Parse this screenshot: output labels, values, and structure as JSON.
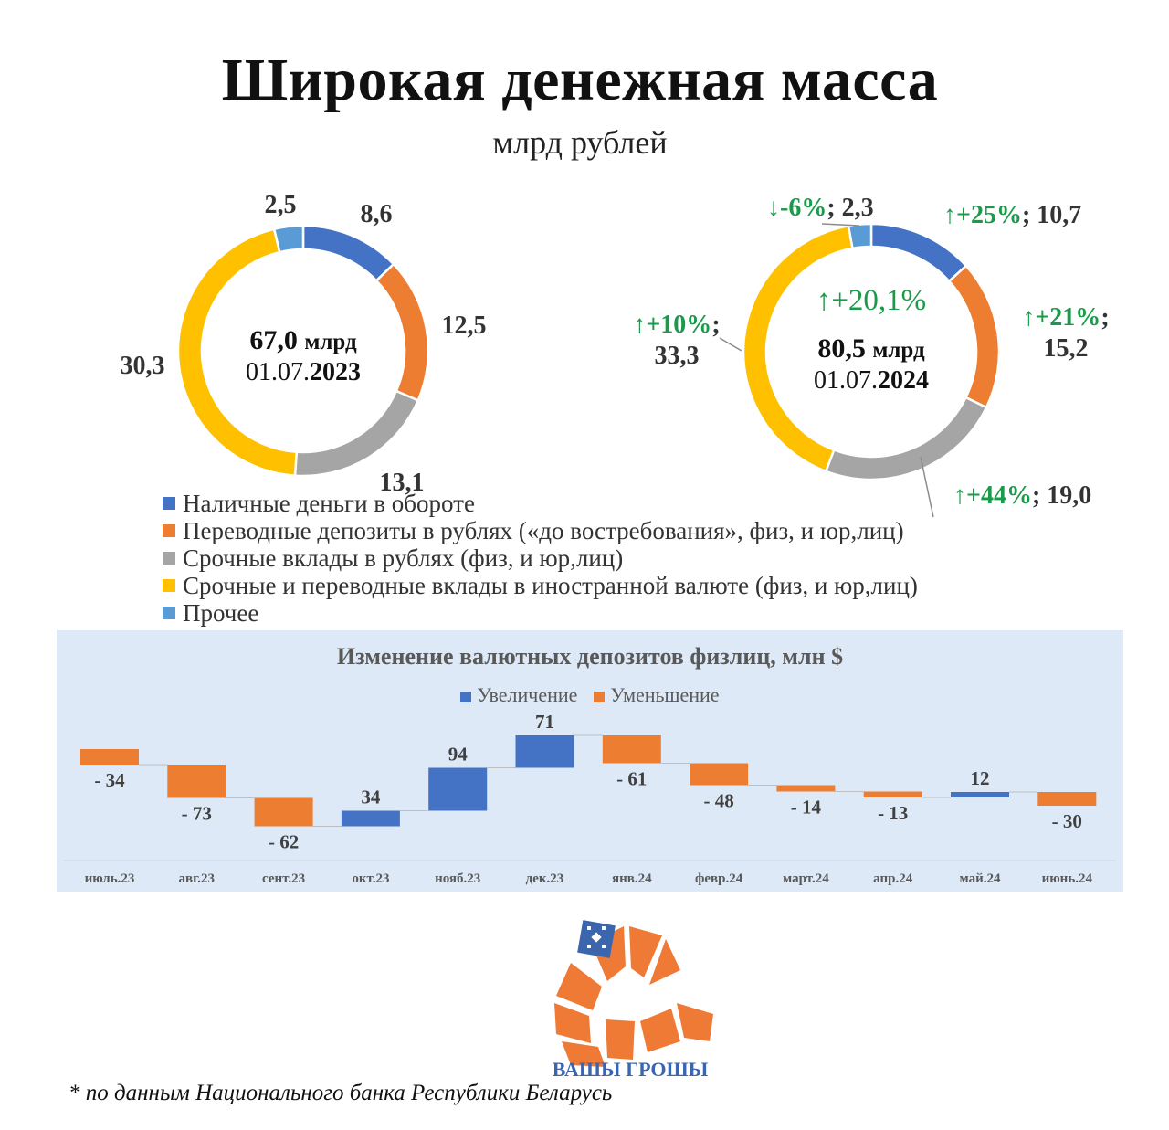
{
  "title": "Широкая денежная масса",
  "subtitle": "млрд рублей",
  "colors": {
    "cash": "#4472c4",
    "transfer": "#ed7d31",
    "term": "#a5a5a5",
    "foreign": "#ffc000",
    "other": "#5b9bd5",
    "increase": "#4472c4",
    "decrease": "#ed7d31",
    "green": "#1a9a4a",
    "panel_bg": "#dde9f7"
  },
  "legend": [
    {
      "key": "cash",
      "label": "Наличные деньги в обороте"
    },
    {
      "key": "transfer",
      "label": "Переводные депозиты в рублях («до востребования», физ, и юр,лиц)"
    },
    {
      "key": "term",
      "label": "Срочные вклады в рублях (физ, и юр,лиц)"
    },
    {
      "key": "foreign",
      "label": "Срочные и переводные вклады в иностранной валюте (физ, и юр,лиц)"
    },
    {
      "key": "other",
      "label": "Прочее"
    }
  ],
  "chart_data": [
    {
      "type": "pie",
      "variant": "donut",
      "center_value": "67,0",
      "center_unit": "млрд",
      "center_date_prefix": "01.07.",
      "center_date_year": "2023",
      "slices": [
        {
          "key": "cash",
          "value": 8.6,
          "label": "8,6"
        },
        {
          "key": "transfer",
          "value": 12.5,
          "label": "12,5"
        },
        {
          "key": "term",
          "value": 13.1,
          "label": "13,1"
        },
        {
          "key": "foreign",
          "value": 30.3,
          "label": "30,3"
        },
        {
          "key": "other",
          "value": 2.5,
          "label": "2,5"
        }
      ]
    },
    {
      "type": "pie",
      "variant": "donut",
      "center_change": "↑+20,1%",
      "center_value": "80,5",
      "center_unit": "млрд",
      "center_date_prefix": "01.07.",
      "center_date_year": "2024",
      "slices": [
        {
          "key": "cash",
          "value": 10.7,
          "label": "10,7",
          "change": "↑+25%"
        },
        {
          "key": "transfer",
          "value": 15.2,
          "label": "15,2",
          "change": "↑+21%"
        },
        {
          "key": "term",
          "value": 19.0,
          "label": "19,0",
          "change": "↑+44%"
        },
        {
          "key": "foreign",
          "value": 33.3,
          "label": "33,3",
          "change": "↑+10%"
        },
        {
          "key": "other",
          "value": 2.3,
          "label": "2,3",
          "change": "↓-6%"
        }
      ]
    },
    {
      "type": "bar",
      "variant": "waterfall",
      "title": "Изменение валютных депозитов физлиц, млн $",
      "legend": {
        "increase": "Увеличение",
        "decrease": "Уменьшение"
      },
      "legend_position": "top",
      "categories": [
        "июль.23",
        "авг.23",
        "сент.23",
        "окт.23",
        "нояб.23",
        "дек.23",
        "янв.24",
        "февр.24",
        "март.24",
        "апр.24",
        "май.24",
        "июнь.24"
      ],
      "values": [
        -34,
        -73,
        -62,
        34,
        94,
        71,
        -61,
        -48,
        -14,
        -13,
        12,
        -30
      ],
      "labels": [
        "- 34",
        "- 73",
        "- 62",
        "34",
        "94",
        "71",
        "- 61",
        "- 48",
        "- 14",
        "- 13",
        "12",
        "- 30"
      ]
    }
  ],
  "footnote": "* по данным Национального банка Республики Беларусь",
  "logo_text": "ВАШЫ ГРОШЫ"
}
